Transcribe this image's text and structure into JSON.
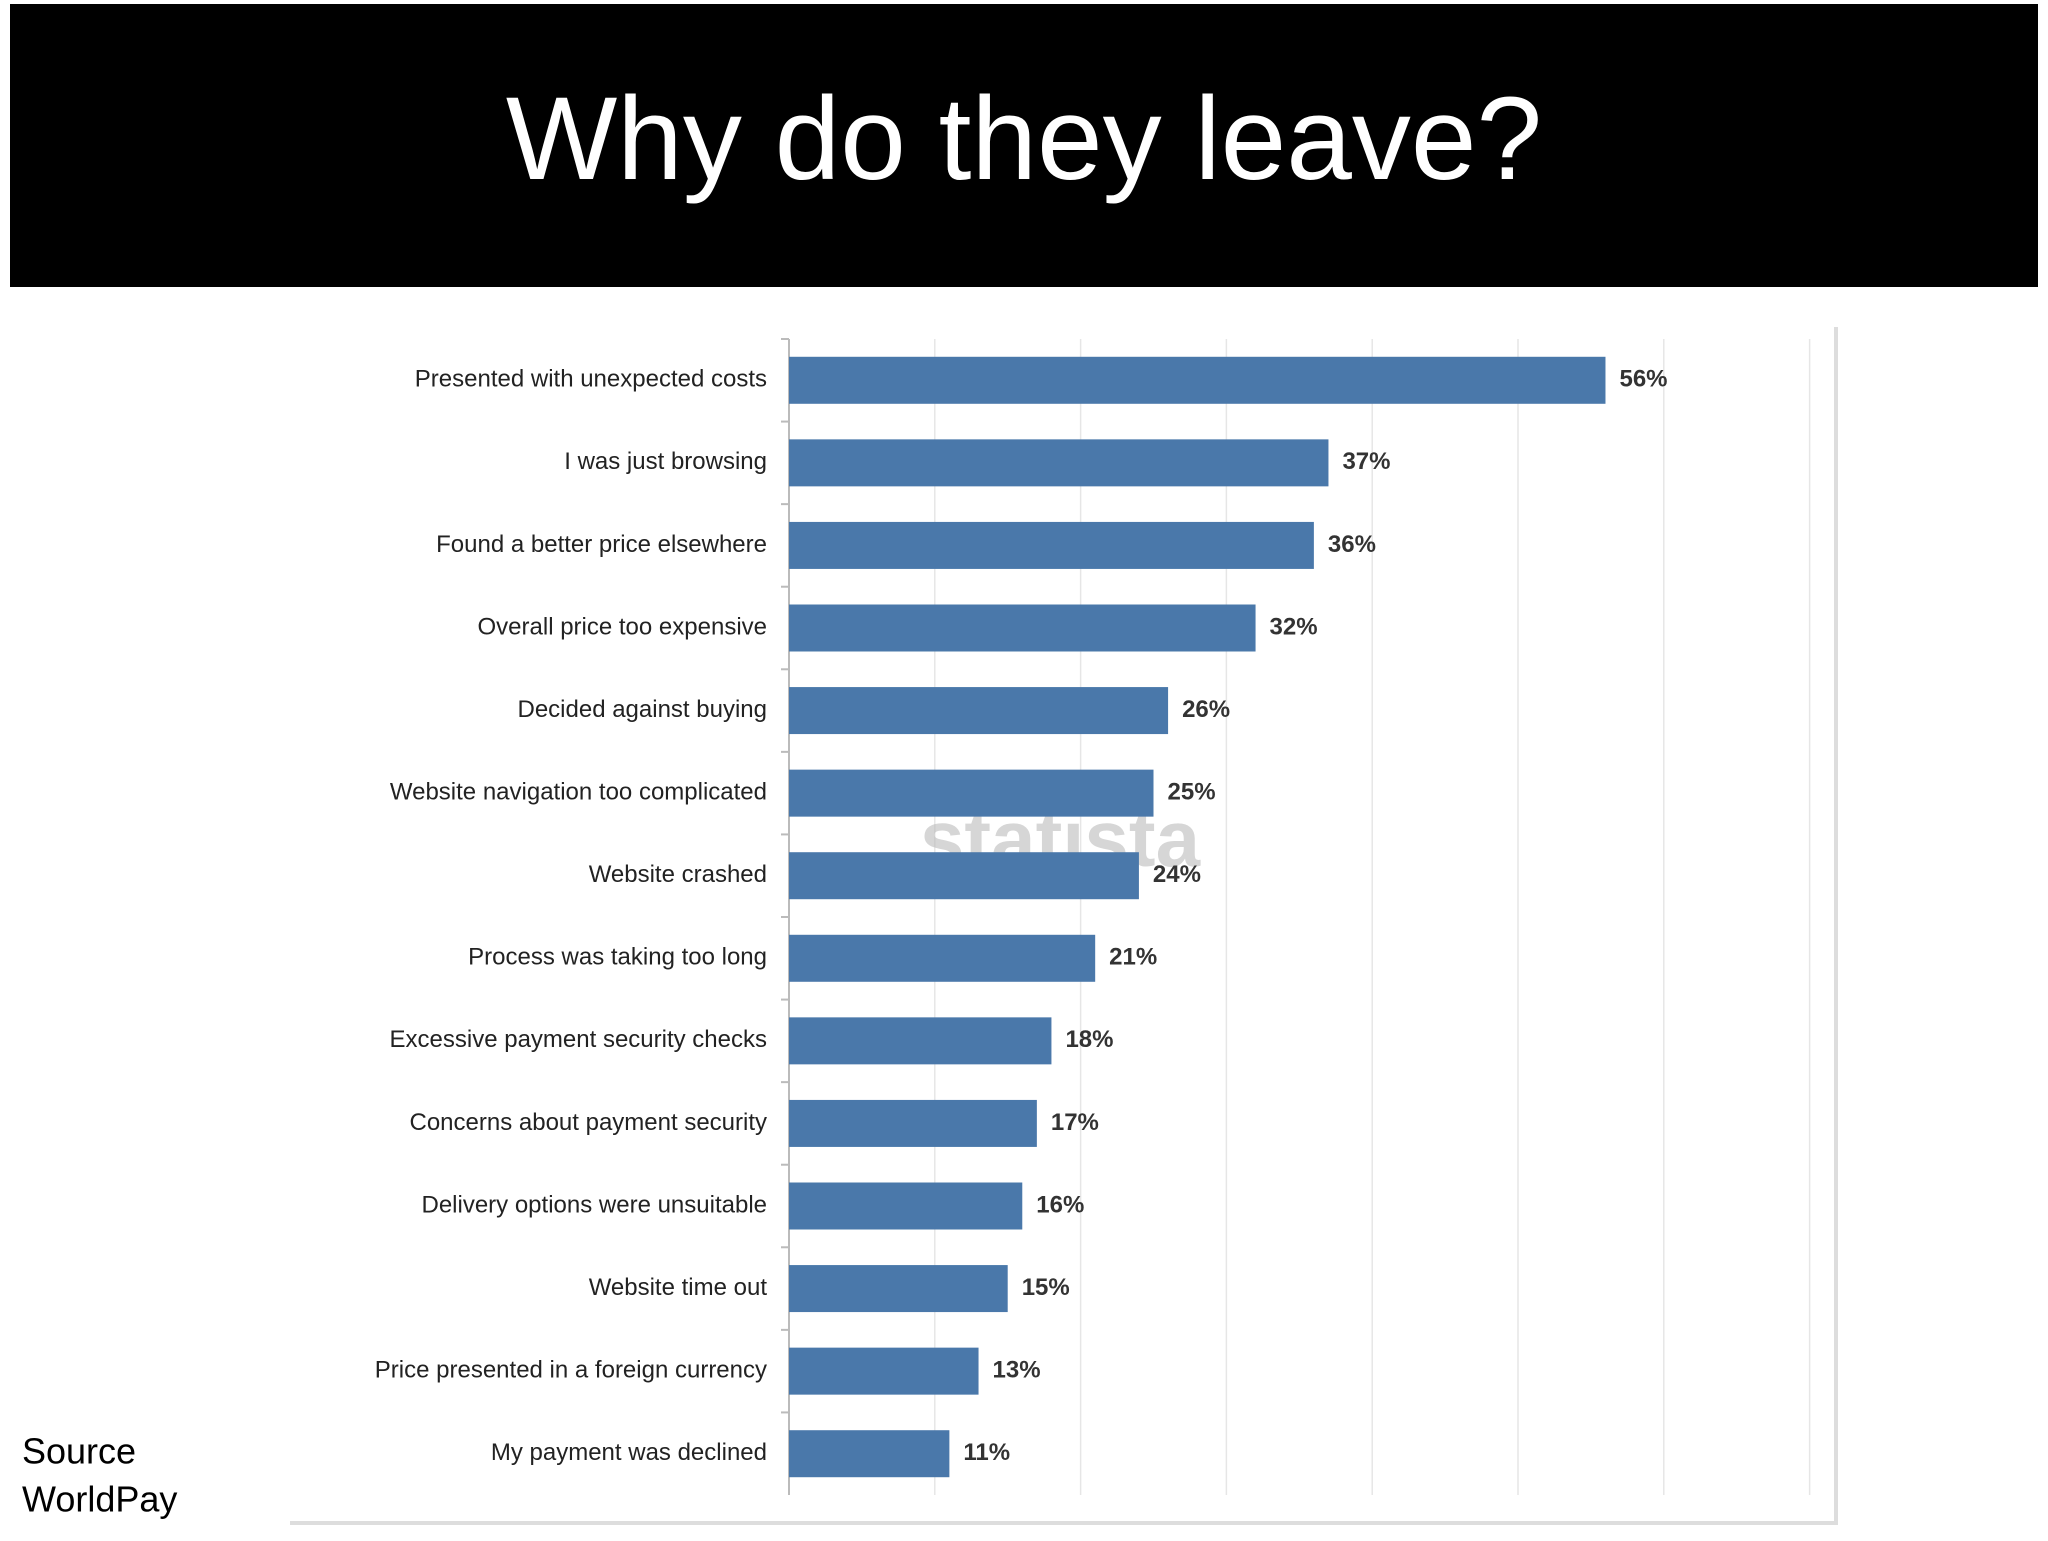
{
  "header": {
    "title": "Why do they leave?"
  },
  "footer": {
    "source": [
      "Source",
      "WorldPay"
    ]
  },
  "chart_data": {
    "type": "bar",
    "orientation": "horizontal",
    "categories": [
      "Presented with unexpected costs",
      "I was just browsing",
      "Found a better price elsewhere",
      "Overall price too expensive",
      "Decided against buying",
      "Website navigation too complicated",
      "Website crashed",
      "Process was taking too long",
      "Excessive payment security checks",
      "Concerns about payment security",
      "Delivery options were unsuitable",
      "Website time out",
      "Price presented in a foreign currency",
      "My payment was declined"
    ],
    "values": [
      56,
      37,
      36,
      32,
      26,
      25,
      24,
      21,
      18,
      17,
      16,
      15,
      13,
      11
    ],
    "value_labels": [
      "56%",
      "37%",
      "36%",
      "32%",
      "26%",
      "25%",
      "24%",
      "21%",
      "18%",
      "17%",
      "16%",
      "15%",
      "13%",
      "11%"
    ],
    "color": "#4a78aa",
    "xlim": [
      0,
      70
    ],
    "xticks": [
      0,
      10,
      20,
      30,
      40,
      50,
      60,
      70
    ],
    "grid": true,
    "watermark": "statista"
  }
}
